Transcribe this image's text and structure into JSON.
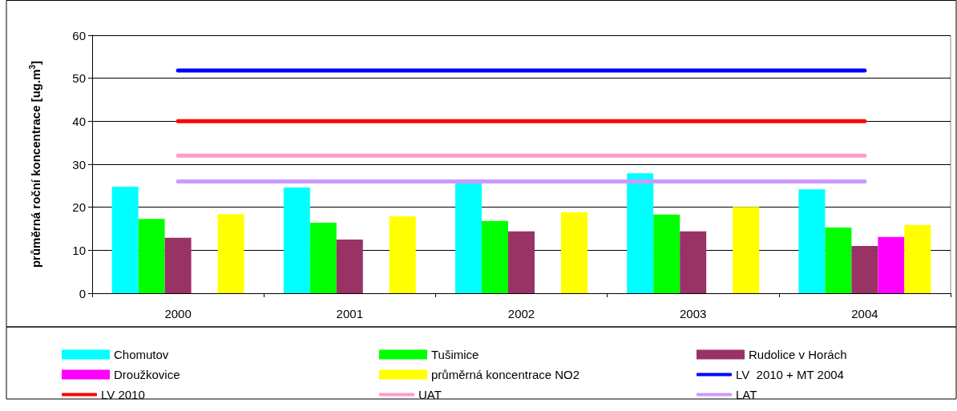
{
  "chart_data": {
    "type": "bar",
    "ylabel": "průměrná roční koncentrace [ug.m$^{3}$]",
    "categories": [
      "2000",
      "2001",
      "2002",
      "2003",
      "2004"
    ],
    "series": [
      {
        "name": "Chomutov",
        "color": "#00ffff",
        "values": [
          24.8,
          24.6,
          25.7,
          27.9,
          24.2
        ]
      },
      {
        "name": "Tušimice",
        "color": "#00ff00",
        "values": [
          17.3,
          16.4,
          16.8,
          18.3,
          15.3
        ]
      },
      {
        "name": "Rudolice v Horách",
        "color": "#993366",
        "values": [
          12.9,
          12.5,
          14.4,
          14.4,
          11.0
        ]
      },
      {
        "name": "Droužkovice",
        "color": "#ff00ff",
        "values": [
          null,
          null,
          null,
          null,
          13.1
        ]
      },
      {
        "name": "průměrná koncentrace NO2",
        "color": "#ffff00",
        "values": [
          18.4,
          17.9,
          18.8,
          20.1,
          15.9
        ]
      },
      {
        "name": "LV  2010 + MT 2004",
        "type": "line",
        "color": "#0000ff",
        "values": [
          51.8,
          51.8,
          51.8,
          51.8,
          51.8
        ]
      },
      {
        "name": "LV 2010",
        "type": "line",
        "color": "#ff0000",
        "values": [
          40,
          40,
          40,
          40,
          40
        ]
      },
      {
        "name": "UAT",
        "type": "line",
        "color": "#ff99cc",
        "values": [
          32,
          32,
          32,
          32,
          32
        ]
      },
      {
        "name": "LAT",
        "type": "line",
        "color": "#cc99ff",
        "values": [
          26,
          26,
          26,
          26,
          26
        ]
      }
    ],
    "ylim": [
      0,
      60
    ],
    "yticks": [
      0,
      10,
      20,
      30,
      40,
      50,
      60
    ],
    "grid": "y",
    "legend": "bottom",
    "marker": "none",
    "line_style": "solid"
  }
}
